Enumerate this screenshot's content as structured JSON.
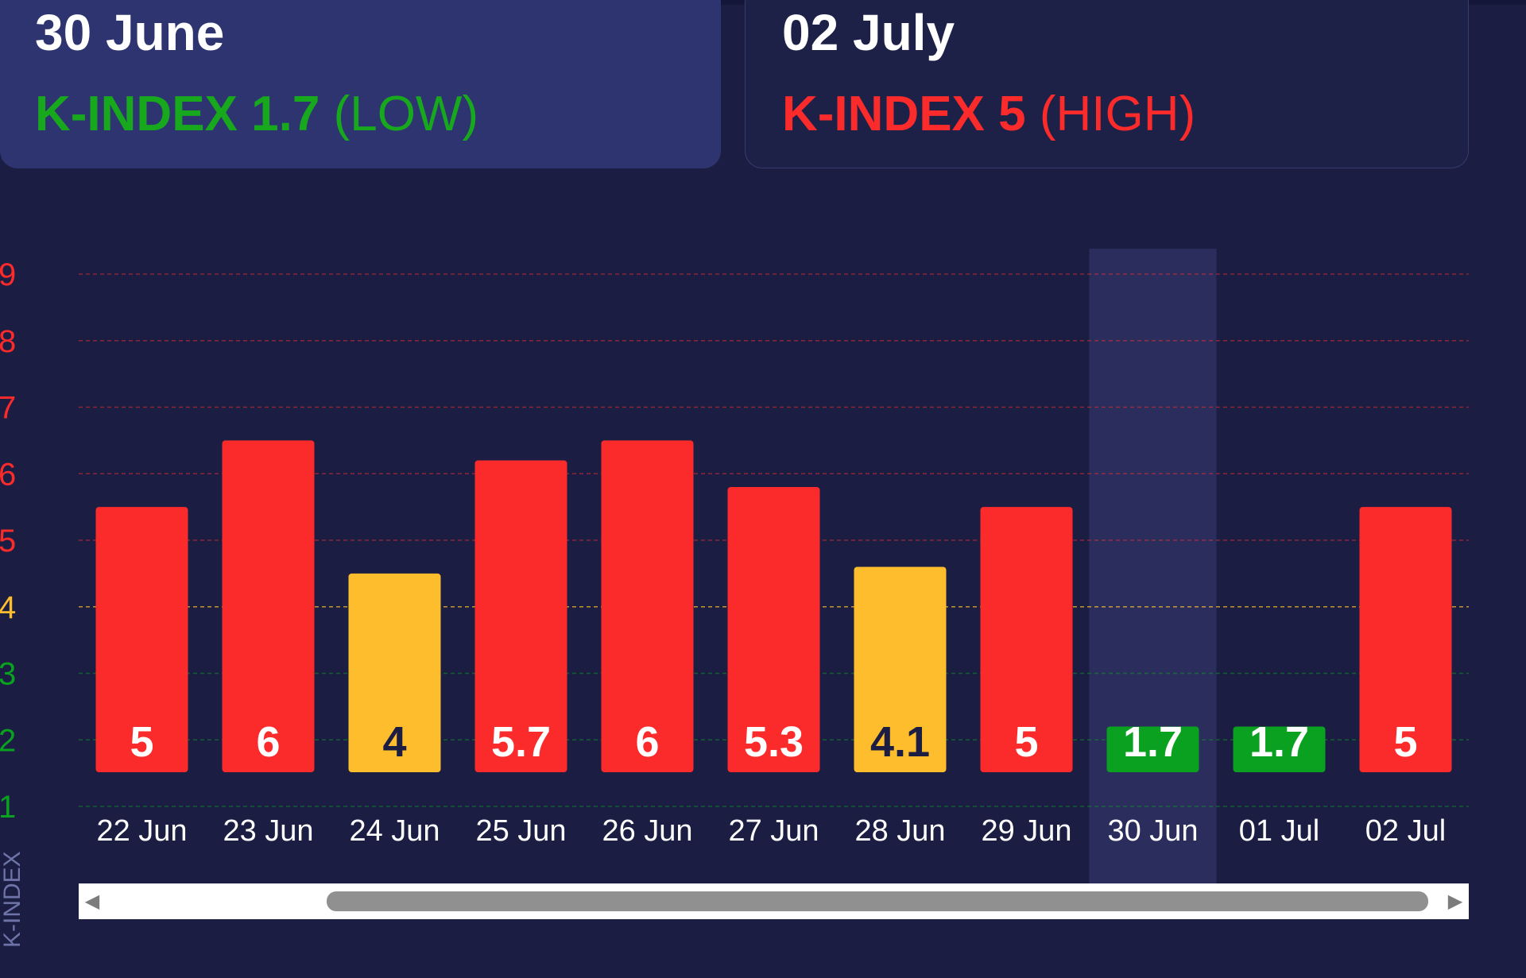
{
  "cards": [
    {
      "date": "30 June",
      "kindex_label": "K-INDEX 1.7",
      "level": "(LOW)",
      "color": "#17a81d",
      "active": true
    },
    {
      "date": "02 July",
      "kindex_label": "K-INDEX 5",
      "level": "(HIGH)",
      "color": "#fb2b2b",
      "active": false
    }
  ],
  "chart_data": {
    "type": "bar",
    "categories": [
      "22 Jun",
      "23 Jun",
      "24 Jun",
      "25 Jun",
      "26 Jun",
      "27 Jun",
      "28 Jun",
      "29 Jun",
      "30 Jun",
      "01 Jul",
      "02 Jul"
    ],
    "values": [
      5,
      6,
      4,
      5.7,
      6,
      5.3,
      4.1,
      5,
      1.7,
      1.7,
      5
    ],
    "labels": [
      "5",
      "6",
      "4",
      "5.7",
      "6",
      "5.3",
      "4.1",
      "5",
      "1.7",
      "1.7",
      "5"
    ],
    "ylabel": "K-INDEX",
    "yticks": [
      1,
      2,
      3,
      4,
      5,
      6,
      7,
      8,
      9
    ],
    "ylim": [
      1,
      9
    ],
    "highlight": "30 Jun",
    "grid": true,
    "colors": {
      "low": "#0aa020",
      "moderate": "#fdbd2c",
      "high": "#fb2b2b",
      "label_dark": "#1b1e42",
      "label_light": "#ffffff"
    }
  },
  "scrollbar": {
    "left_arrow": "◀",
    "right_arrow": "▶"
  }
}
